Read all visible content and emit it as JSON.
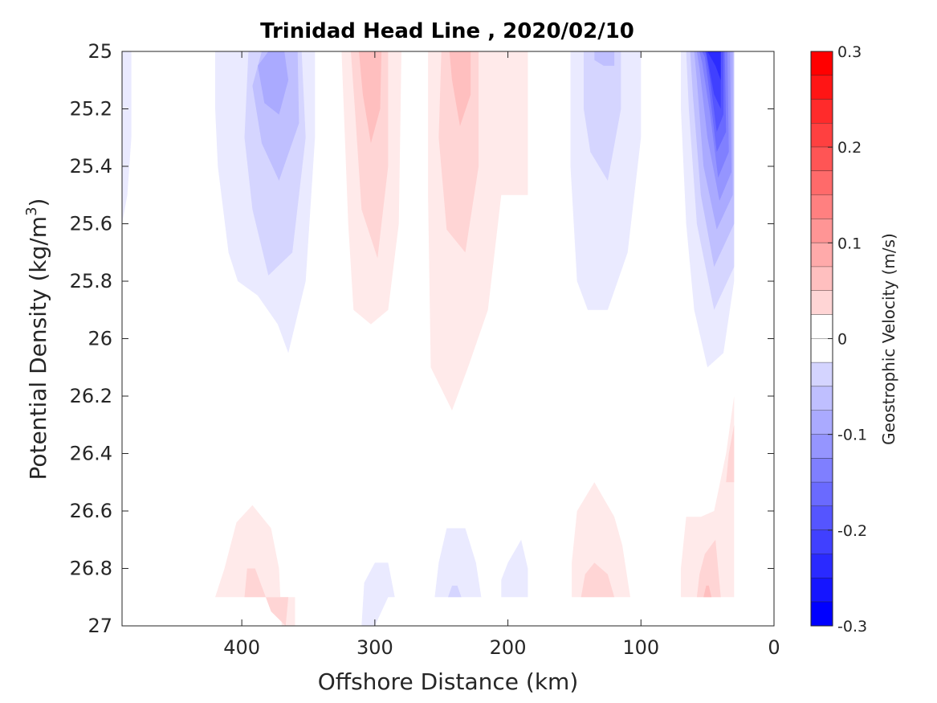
{
  "chart_data": {
    "type": "contour",
    "title": "Trinidad Head Line , 2020/02/10",
    "xlabel": "Offshore Distance (km)",
    "ylabel": "Potential Density (kg/m",
    "ylabel_sup": "3",
    "ylabel_close": ")",
    "xlim": [
      490,
      0
    ],
    "ylim": [
      25,
      27
    ],
    "x_ticks": [
      400,
      300,
      200,
      100,
      0
    ],
    "x_tick_labels": [
      "400",
      "300",
      "200",
      "100",
      "0"
    ],
    "y_ticks": [
      25,
      25.2,
      25.4,
      25.6,
      25.8,
      26,
      26.2,
      26.4,
      26.6,
      26.8,
      27
    ],
    "y_tick_labels": [
      "25",
      "25.2",
      "25.4",
      "25.6",
      "25.8",
      "26",
      "26.2",
      "26.4",
      "26.6",
      "26.8",
      "27"
    ],
    "colorbar": {
      "label": "Geostrophic Velocity (m/s)",
      "range": [
        -0.3,
        0.3
      ],
      "step": 0.025,
      "tick_values": [
        0.3,
        0.2,
        0.1,
        0,
        -0.1,
        -0.2,
        -0.3
      ],
      "tick_labels": [
        "0.3",
        "0.2",
        "0.1",
        "0",
        "-0.1",
        "-0.2",
        "-0.3"
      ],
      "negative_color": "#0000ff",
      "positive_color": "#ff0000",
      "zero_color": "#ffffff"
    },
    "regions": [
      {
        "level": -0.025,
        "points": [
          [
            490,
            25
          ],
          [
            483,
            25
          ],
          [
            483,
            25.3
          ],
          [
            486,
            25.5
          ],
          [
            490,
            25.6
          ]
        ]
      },
      {
        "level": -0.025,
        "points": [
          [
            420,
            25
          ],
          [
            345,
            25
          ],
          [
            345,
            25.3
          ],
          [
            352,
            25.8
          ],
          [
            365,
            26.05
          ],
          [
            373,
            25.95
          ],
          [
            388,
            25.85
          ],
          [
            403,
            25.8
          ],
          [
            410,
            25.7
          ],
          [
            418,
            25.4
          ],
          [
            420,
            25.2
          ]
        ]
      },
      {
        "level": -0.05,
        "points": [
          [
            395,
            25
          ],
          [
            355,
            25
          ],
          [
            352,
            25.3
          ],
          [
            362,
            25.7
          ],
          [
            380,
            25.78
          ],
          [
            392,
            25.55
          ],
          [
            398,
            25.3
          ]
        ]
      },
      {
        "level": -0.075,
        "points": [
          [
            385,
            25
          ],
          [
            358,
            25
          ],
          [
            357,
            25.25
          ],
          [
            372,
            25.45
          ],
          [
            385,
            25.32
          ],
          [
            392,
            25.12
          ]
        ]
      },
      {
        "level": -0.1,
        "points": [
          [
            380,
            25
          ],
          [
            368,
            25
          ],
          [
            365,
            25.1
          ],
          [
            372,
            25.22
          ],
          [
            383,
            25.18
          ],
          [
            388,
            25.05
          ]
        ]
      },
      {
        "level": 0.025,
        "points": [
          [
            325,
            25
          ],
          [
            280,
            25
          ],
          [
            282,
            25.6
          ],
          [
            290,
            25.9
          ],
          [
            303,
            25.95
          ],
          [
            316,
            25.9
          ],
          [
            320,
            25.6
          ]
        ]
      },
      {
        "level": 0.05,
        "points": [
          [
            318,
            25
          ],
          [
            290,
            25
          ],
          [
            290,
            25.4
          ],
          [
            298,
            25.72
          ],
          [
            310,
            25.55
          ],
          [
            315,
            25.2
          ]
        ]
      },
      {
        "level": 0.075,
        "points": [
          [
            312,
            25
          ],
          [
            295,
            25
          ],
          [
            296,
            25.2
          ],
          [
            303,
            25.32
          ],
          [
            309,
            25.15
          ]
        ]
      },
      {
        "level": 0.025,
        "points": [
          [
            260,
            25
          ],
          [
            185,
            25
          ],
          [
            185,
            25.5
          ],
          [
            205,
            25.5
          ],
          [
            215,
            25.9
          ],
          [
            230,
            26.1
          ],
          [
            242,
            26.25
          ],
          [
            258,
            26.1
          ],
          [
            260,
            25.5
          ]
        ]
      },
      {
        "level": 0.05,
        "points": [
          [
            250,
            25
          ],
          [
            222,
            25
          ],
          [
            222,
            25.4
          ],
          [
            232,
            25.7
          ],
          [
            246,
            25.62
          ],
          [
            252,
            25.3
          ]
        ]
      },
      {
        "level": 0.075,
        "points": [
          [
            244,
            25
          ],
          [
            228,
            25
          ],
          [
            228,
            25.15
          ],
          [
            236,
            25.26
          ],
          [
            242,
            25.1
          ]
        ]
      },
      {
        "level": -0.025,
        "points": [
          [
            153,
            25
          ],
          [
            100,
            25
          ],
          [
            100,
            25.3
          ],
          [
            110,
            25.7
          ],
          [
            125,
            25.9
          ],
          [
            140,
            25.9
          ],
          [
            148,
            25.8
          ],
          [
            153,
            25.4
          ]
        ]
      },
      {
        "level": -0.05,
        "points": [
          [
            143,
            25
          ],
          [
            115,
            25
          ],
          [
            115,
            25.2
          ],
          [
            125,
            25.45
          ],
          [
            138,
            25.35
          ],
          [
            143,
            25.2
          ]
        ]
      },
      {
        "level": -0.075,
        "points": [
          [
            135,
            25
          ],
          [
            120,
            25
          ],
          [
            120,
            25.05
          ],
          [
            128,
            25.05
          ],
          [
            135,
            25.03
          ]
        ]
      },
      {
        "level": -0.025,
        "points": [
          [
            70,
            25
          ],
          [
            30,
            25
          ],
          [
            30,
            25.8
          ],
          [
            38,
            26.05
          ],
          [
            50,
            26.1
          ],
          [
            60,
            25.9
          ],
          [
            66,
            25.6
          ],
          [
            70,
            25.2
          ]
        ]
      },
      {
        "level": -0.05,
        "points": [
          [
            66,
            25
          ],
          [
            30,
            25
          ],
          [
            30,
            25.75
          ],
          [
            45,
            25.9
          ],
          [
            58,
            25.6
          ],
          [
            64,
            25.2
          ]
        ]
      },
      {
        "level": -0.075,
        "points": [
          [
            63,
            25
          ],
          [
            30,
            25
          ],
          [
            30,
            25.6
          ],
          [
            45,
            25.75
          ],
          [
            55,
            25.5
          ],
          [
            61,
            25.15
          ]
        ]
      },
      {
        "level": -0.1,
        "points": [
          [
            60,
            25
          ],
          [
            31,
            25
          ],
          [
            31,
            25.5
          ],
          [
            43,
            25.62
          ],
          [
            53,
            25.4
          ],
          [
            58,
            25.1
          ]
        ]
      },
      {
        "level": -0.125,
        "points": [
          [
            58,
            25
          ],
          [
            33,
            25
          ],
          [
            32,
            25.42
          ],
          [
            41,
            25.52
          ],
          [
            50,
            25.3
          ],
          [
            56,
            25.06
          ]
        ]
      },
      {
        "level": -0.15,
        "points": [
          [
            56,
            25
          ],
          [
            35,
            25
          ],
          [
            34,
            25.35
          ],
          [
            42,
            25.44
          ],
          [
            48,
            25.22
          ],
          [
            54,
            25.04
          ]
        ]
      },
      {
        "level": -0.175,
        "points": [
          [
            54,
            25
          ],
          [
            37,
            25
          ],
          [
            36,
            25.28
          ],
          [
            43,
            25.35
          ],
          [
            48,
            25.16
          ],
          [
            52,
            25.02
          ]
        ]
      },
      {
        "level": -0.2,
        "points": [
          [
            52,
            25
          ],
          [
            38,
            25
          ],
          [
            38,
            25.22
          ],
          [
            43,
            25.28
          ],
          [
            48,
            25.1
          ],
          [
            51,
            25.01
          ]
        ]
      },
      {
        "level": -0.225,
        "points": [
          [
            51,
            25
          ],
          [
            40,
            25
          ],
          [
            40,
            25.2
          ],
          [
            45,
            25.15
          ],
          [
            49,
            25.05
          ]
        ]
      },
      {
        "level": -0.25,
        "points": [
          [
            50,
            25
          ],
          [
            40,
            25
          ],
          [
            40,
            25.1
          ],
          [
            44,
            25.05
          ]
        ]
      },
      {
        "level": 0.025,
        "points": [
          [
            420,
            26.9
          ],
          [
            360,
            26.9
          ],
          [
            360,
            27
          ],
          [
            370,
            27
          ],
          [
            372,
            26.8
          ],
          [
            378,
            26.66
          ],
          [
            392,
            26.58
          ],
          [
            404,
            26.64
          ],
          [
            413,
            26.8
          ]
        ]
      },
      {
        "level": 0.05,
        "points": [
          [
            398,
            26.9
          ],
          [
            365,
            26.9
          ],
          [
            367,
            27
          ],
          [
            378,
            26.95
          ],
          [
            390,
            26.8
          ],
          [
            396,
            26.8
          ]
        ]
      },
      {
        "level": -0.025,
        "points": [
          [
            310,
            27
          ],
          [
            300,
            27
          ],
          [
            290,
            26.9
          ],
          [
            285,
            26.9
          ],
          [
            290,
            26.78
          ],
          [
            300,
            26.78
          ],
          [
            308,
            26.85
          ]
        ]
      },
      {
        "level": -0.025,
        "points": [
          [
            255,
            26.9
          ],
          [
            220,
            26.9
          ],
          [
            224,
            26.78
          ],
          [
            232,
            26.66
          ],
          [
            246,
            26.66
          ],
          [
            252,
            26.78
          ]
        ]
      },
      {
        "level": -0.05,
        "points": [
          [
            245,
            26.9
          ],
          [
            235,
            26.9
          ],
          [
            238,
            26.86
          ],
          [
            242,
            26.86
          ]
        ]
      },
      {
        "level": -0.025,
        "points": [
          [
            205,
            26.9
          ],
          [
            185,
            26.9
          ],
          [
            185,
            26.8
          ],
          [
            190,
            26.7
          ],
          [
            200,
            26.78
          ],
          [
            205,
            26.84
          ]
        ]
      },
      {
        "level": 0.025,
        "points": [
          [
            152,
            26.9
          ],
          [
            108,
            26.9
          ],
          [
            114,
            26.72
          ],
          [
            120,
            26.62
          ],
          [
            135,
            26.5
          ],
          [
            148,
            26.6
          ],
          [
            152,
            26.78
          ]
        ]
      },
      {
        "level": 0.05,
        "points": [
          [
            145,
            26.9
          ],
          [
            120,
            26.9
          ],
          [
            125,
            26.82
          ],
          [
            135,
            26.78
          ],
          [
            142,
            26.82
          ]
        ]
      },
      {
        "level": 0.025,
        "points": [
          [
            70,
            26.9
          ],
          [
            30,
            26.9
          ],
          [
            30,
            26.2
          ],
          [
            36,
            26.4
          ],
          [
            45,
            26.6
          ],
          [
            55,
            26.62
          ],
          [
            66,
            26.62
          ],
          [
            70,
            26.8
          ]
        ]
      },
      {
        "level": 0.05,
        "points": [
          [
            58,
            26.9
          ],
          [
            40,
            26.9
          ],
          [
            44,
            26.7
          ],
          [
            52,
            26.75
          ],
          [
            56,
            26.82
          ]
        ]
      },
      {
        "level": 0.05,
        "points": [
          [
            36,
            26.5
          ],
          [
            30,
            26.5
          ],
          [
            30,
            26.3
          ],
          [
            34,
            26.4
          ]
        ]
      },
      {
        "level": 0.075,
        "points": [
          [
            53,
            26.9
          ],
          [
            47,
            26.9
          ],
          [
            49,
            26.86
          ],
          [
            51,
            26.86
          ]
        ]
      }
    ]
  }
}
